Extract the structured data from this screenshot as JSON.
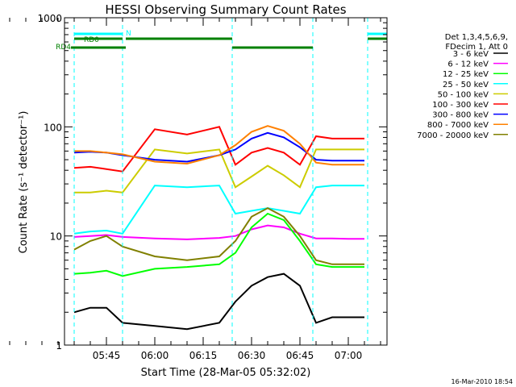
{
  "chart_data": {
    "type": "line",
    "title": "HESSI Observing Summary Count Rates",
    "xlabel": "Start Time (28-Mar-05 05:32:02)",
    "ylabel": "Count Rate (s⁻¹ detector⁻¹)",
    "yscale": "log",
    "ylim": [
      1,
      1000
    ],
    "xlim_minutes": [
      "05:32",
      "07:12"
    ],
    "x_tick_labels": [
      "05:45",
      "06:00",
      "06:15",
      "06:30",
      "06:45",
      "07:00"
    ],
    "y_tick_labels": [
      "1",
      "10",
      "100",
      "1000"
    ],
    "grid": false,
    "legend_header": [
      "Det 1,3,4,5,6,9,",
      "FDecim 1, Att 0"
    ],
    "legend_placement": "right",
    "footer_date": "16-Mar-2010 18:54",
    "flags": [
      {
        "label": "N",
        "color": "#00ffff"
      },
      {
        "label": "RD0",
        "color": "#008000"
      },
      {
        "label": "RD4",
        "color": "#008000"
      }
    ],
    "night_boundaries": [
      "05:35",
      "05:50",
      "06:24",
      "06:49",
      "07:06"
    ],
    "series": [
      {
        "name": "3 - 6 keV",
        "color": "#000000",
        "x": [
          "05:35",
          "05:40",
          "05:45",
          "05:50",
          "06:00",
          "06:10",
          "06:20",
          "06:25",
          "06:30",
          "06:35",
          "06:40",
          "06:45",
          "06:50",
          "06:55",
          "07:00",
          "07:05"
        ],
        "y": [
          2.0,
          2.2,
          2.2,
          1.6,
          1.5,
          1.4,
          1.6,
          2.5,
          3.5,
          4.2,
          4.5,
          3.5,
          1.6,
          1.8,
          1.8,
          1.8
        ]
      },
      {
        "name": "6 - 12 keV",
        "color": "#ff00ff",
        "x": [
          "05:35",
          "05:40",
          "05:45",
          "05:50",
          "06:00",
          "06:10",
          "06:20",
          "06:25",
          "06:30",
          "06:35",
          "06:40",
          "06:45",
          "06:50",
          "06:55",
          "07:00",
          "07:05"
        ],
        "y": [
          9.8,
          10.0,
          10.2,
          9.8,
          9.5,
          9.3,
          9.6,
          10.0,
          11.5,
          12.5,
          12.0,
          10.5,
          9.5,
          9.5,
          9.4,
          9.4
        ]
      },
      {
        "name": "12 - 25 keV",
        "color": "#00ff00",
        "x": [
          "05:35",
          "05:40",
          "05:45",
          "05:50",
          "06:00",
          "06:10",
          "06:20",
          "06:25",
          "06:30",
          "06:35",
          "06:40",
          "06:45",
          "06:50",
          "06:55",
          "07:00",
          "07:05"
        ],
        "y": [
          4.5,
          4.6,
          4.8,
          4.3,
          5.0,
          5.2,
          5.5,
          7.0,
          12.0,
          16.0,
          14.0,
          9.0,
          5.5,
          5.2,
          5.2,
          5.2
        ]
      },
      {
        "name": "25 - 50 keV",
        "color": "#00ffff",
        "x": [
          "05:35",
          "05:40",
          "05:45",
          "05:50",
          "06:00",
          "06:10",
          "06:20",
          "06:25",
          "06:30",
          "06:35",
          "06:40",
          "06:45",
          "06:50",
          "06:55",
          "07:00",
          "07:05"
        ],
        "y": [
          10.5,
          11.0,
          11.2,
          10.5,
          29,
          28,
          29,
          16,
          17,
          18,
          17,
          16,
          28,
          29,
          29,
          29
        ]
      },
      {
        "name": "50 - 100 keV",
        "color": "#cccc00",
        "x": [
          "05:35",
          "05:40",
          "05:45",
          "05:50",
          "06:00",
          "06:10",
          "06:20",
          "06:25",
          "06:30",
          "06:35",
          "06:40",
          "06:45",
          "06:50",
          "06:55",
          "07:00",
          "07:05"
        ],
        "y": [
          25,
          25,
          26,
          25,
          62,
          57,
          62,
          28,
          35,
          44,
          36,
          28,
          62,
          62,
          62,
          62
        ]
      },
      {
        "name": "100 - 300 keV",
        "color": "#ff0000",
        "x": [
          "05:35",
          "05:40",
          "05:45",
          "05:50",
          "06:00",
          "06:10",
          "06:20",
          "06:25",
          "06:30",
          "06:35",
          "06:40",
          "06:45",
          "06:50",
          "06:55",
          "07:00",
          "07:05"
        ],
        "y": [
          42,
          43,
          41,
          39,
          95,
          85,
          100,
          45,
          58,
          64,
          58,
          45,
          82,
          78,
          78,
          78
        ]
      },
      {
        "name": "300 - 800 keV",
        "color": "#0000ff",
        "x": [
          "05:35",
          "05:40",
          "05:45",
          "05:50",
          "06:00",
          "06:10",
          "06:20",
          "06:25",
          "06:30",
          "06:35",
          "06:40",
          "06:45",
          "06:50",
          "06:55",
          "07:00",
          "07:05"
        ],
        "y": [
          58,
          59,
          58,
          55,
          50,
          48,
          55,
          62,
          78,
          88,
          80,
          65,
          50,
          49,
          49,
          49
        ]
      },
      {
        "name": "800 - 7000 keV",
        "color": "#ff8000",
        "x": [
          "05:35",
          "05:40",
          "05:45",
          "05:50",
          "06:00",
          "06:10",
          "06:20",
          "06:25",
          "06:30",
          "06:35",
          "06:40",
          "06:45",
          "06:50",
          "06:55",
          "07:00",
          "07:05"
        ],
        "y": [
          60,
          60,
          58,
          56,
          48,
          46,
          55,
          68,
          90,
          102,
          92,
          70,
          47,
          45,
          45,
          45
        ]
      },
      {
        "name": "7000 - 20000 keV",
        "color": "#808000",
        "x": [
          "05:35",
          "05:40",
          "05:45",
          "05:50",
          "06:00",
          "06:10",
          "06:20",
          "06:25",
          "06:30",
          "06:35",
          "06:40",
          "06:45",
          "06:50",
          "06:55",
          "07:00",
          "07:05"
        ],
        "y": [
          7.5,
          9.0,
          10.0,
          8.0,
          6.5,
          6.0,
          6.5,
          9.0,
          15.0,
          18.0,
          15.0,
          10.0,
          6.0,
          5.5,
          5.5,
          5.5
        ]
      }
    ]
  }
}
